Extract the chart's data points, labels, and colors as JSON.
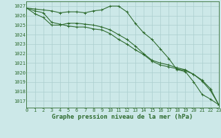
{
  "hours": [
    0,
    1,
    2,
    3,
    4,
    5,
    6,
    7,
    8,
    9,
    10,
    11,
    12,
    13,
    14,
    15,
    16,
    17,
    18,
    19,
    20,
    21,
    22,
    23
  ],
  "line1": [
    1026.8,
    1026.7,
    1026.6,
    1026.5,
    1026.3,
    1026.4,
    1026.4,
    1026.3,
    1026.5,
    1026.6,
    1027.0,
    1027.0,
    1026.4,
    1025.2,
    1024.2,
    1023.5,
    1022.5,
    1021.5,
    1020.3,
    1020.1,
    1019.0,
    1017.7,
    1017.2,
    1016.6
  ],
  "line2": [
    1026.8,
    1026.2,
    1025.8,
    1025.0,
    1025.0,
    1025.2,
    1025.2,
    1025.1,
    1025.0,
    1024.8,
    1024.5,
    1024.0,
    1023.5,
    1022.8,
    1022.0,
    1021.3,
    1021.0,
    1020.8,
    1020.5,
    1020.3,
    1019.8,
    1019.2,
    1018.3,
    1016.6
  ],
  "line3": [
    1026.8,
    1026.5,
    1026.3,
    1025.3,
    1025.1,
    1024.9,
    1024.8,
    1024.8,
    1024.6,
    1024.5,
    1024.1,
    1023.5,
    1023.0,
    1022.4,
    1021.9,
    1021.2,
    1020.8,
    1020.6,
    1020.4,
    1020.2,
    1019.8,
    1019.1,
    1018.1,
    1016.6
  ],
  "line_color": "#2d6a2d",
  "bg_color": "#cce8e8",
  "grid_color": "#aacece",
  "title": "Graphe pression niveau de la mer (hPa)",
  "ylim_min": 1016.3,
  "ylim_max": 1027.5,
  "yticks": [
    1017,
    1018,
    1019,
    1020,
    1021,
    1022,
    1023,
    1024,
    1025,
    1026,
    1027
  ],
  "tick_fontsize": 5,
  "title_fontsize": 6.5,
  "marker_size": 2.5
}
